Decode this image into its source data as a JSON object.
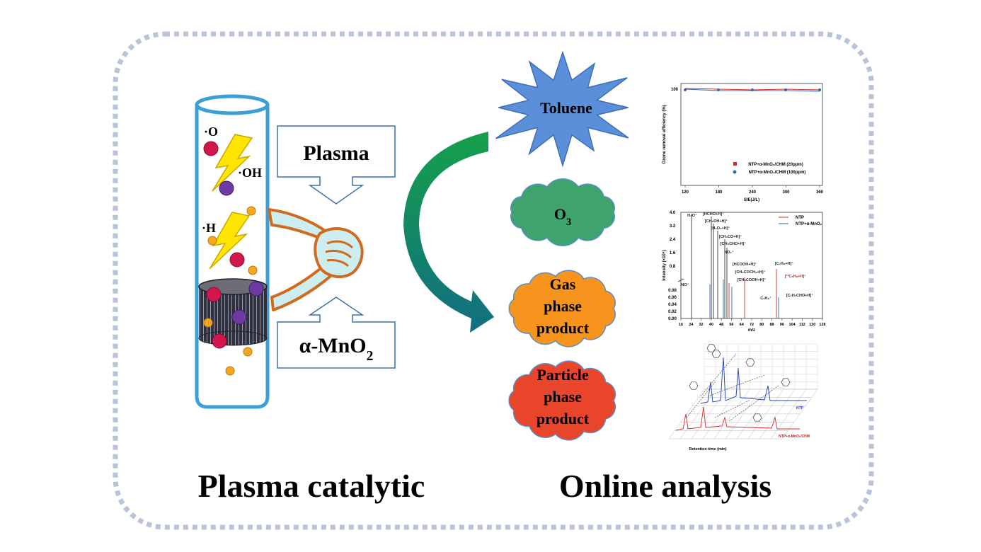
{
  "left_panel": {
    "title": "Plasma catalytic",
    "radicals": [
      "·O",
      "·OH",
      "·H"
    ],
    "plasma_box": "Plasma",
    "catalyst_box": {
      "text": "α-MnO",
      "sub": "2"
    }
  },
  "right_panel": {
    "title": "Online analysis",
    "toluene": "Toluene",
    "ozone": {
      "text": "O",
      "sub": "3"
    },
    "gas_product": [
      "Gas",
      "phase",
      "product"
    ],
    "particle_product": [
      "Particle",
      "phase",
      "product"
    ]
  },
  "ozone_chart": {
    "y_label": "Ozone removal efficiency (%)",
    "x_label": "SIE(J/L)",
    "x_ticks": [
      "120",
      "180",
      "240",
      "300",
      "360"
    ],
    "y_ticks": [
      "100"
    ],
    "legend": [
      "NTP+α-MnO₂/CHM (20ppm)",
      "NTP+α-MnO₂/CHM (100ppm)"
    ]
  },
  "ms_chart": {
    "y_label": "Intensity (×10⁴)",
    "x_label": "m/z",
    "x_ticks": [
      "16",
      "24",
      "32",
      "40",
      "48",
      "56",
      "64",
      "72",
      "80",
      "88",
      "96",
      "104",
      "112",
      "120",
      "128"
    ],
    "y_ticks_upper": [
      "4.0",
      "3.2",
      "2.4",
      "1.6",
      "0.8"
    ],
    "y_ticks_lower": [
      "0.08",
      "0.06",
      "0.04",
      "0.02",
      "0.00"
    ],
    "legend": [
      "NTP",
      "NTP+α-MnO₂"
    ],
    "peak_labels": [
      "H₃O⁺",
      "[HCHO+H]⁺",
      "[CH₃OH+H]⁺",
      "[H₂O₂+H]⁺",
      "[CH₃CO+H]⁺",
      "[CH₃CHO+H]⁺",
      "NO₂⁺",
      "[HCOOH+H]⁺",
      "[CH₃COCH₃+H]⁺",
      "[CH₃COOH+H]⁺",
      "[C₇H₈+H]⁺",
      "[¹³C₆H₈+H]⁺",
      "NO⁺",
      "C₇H₈⁺",
      "[C₇H₇CHO+H]⁺"
    ]
  },
  "gc_chart": {
    "x_label": "Retention time (min)",
    "series_labels": [
      "NTP",
      "NTP+α-MnO₂/CHM"
    ]
  }
}
